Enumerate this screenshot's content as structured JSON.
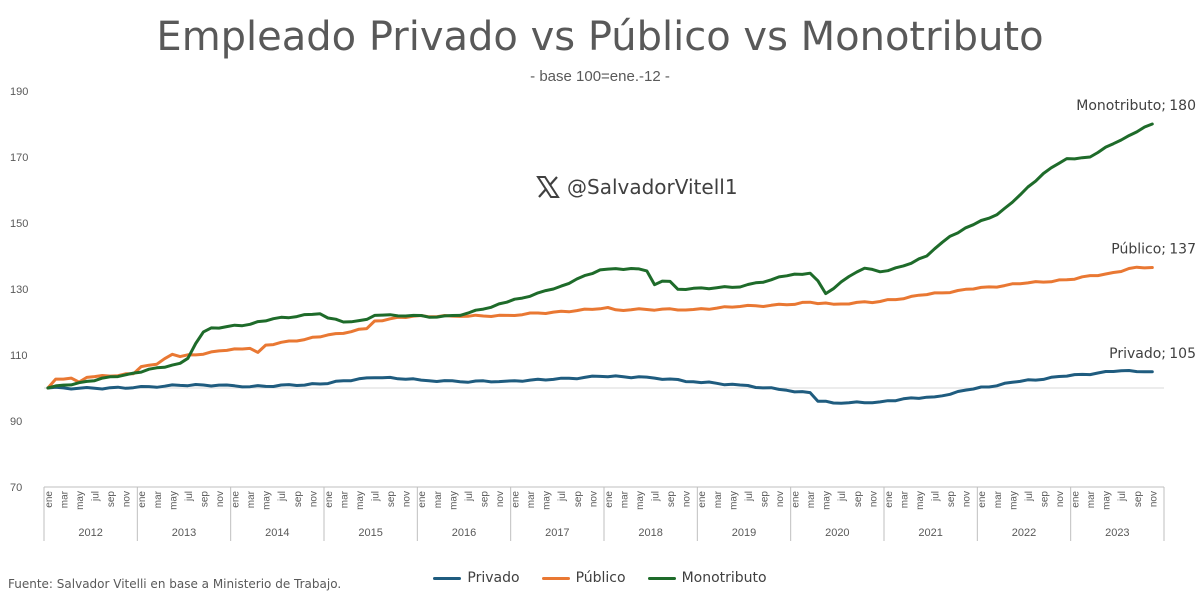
{
  "title": "Empleado Privado vs Público vs Monotributo",
  "subtitle": "- base 100=ene.-12 -",
  "watermark": {
    "handle": "@SalvadorVitell1",
    "icon": "x-logo-icon"
  },
  "source": "Fuente: Salvador Vitelli en base a Ministerio de Trabajo.",
  "chart_data": {
    "type": "line",
    "x_start": "2012-01",
    "x_end": "2023-11",
    "years": [
      "2012",
      "2013",
      "2014",
      "2015",
      "2016",
      "2017",
      "2018",
      "2019",
      "2020",
      "2021",
      "2022",
      "2023"
    ],
    "month_tick_labels": [
      "ene",
      "mar",
      "may",
      "jul",
      "sep",
      "nov"
    ],
    "y_ticks": [
      70,
      90,
      110,
      130,
      150,
      170,
      190
    ],
    "ylim": [
      70,
      190
    ],
    "reference_line": 100,
    "legend_position": "bottom",
    "series": [
      {
        "name": "Privado",
        "color": "#1F5C7F",
        "end_label": "Privado;",
        "end_value": "105",
        "anchors": [
          [
            "2012-01",
            100
          ],
          [
            "2012-07",
            99.9
          ],
          [
            "2012-12",
            100.1
          ],
          [
            "2013-06",
            100.8
          ],
          [
            "2013-12",
            100.9
          ],
          [
            "2014-03",
            100.4
          ],
          [
            "2014-12",
            101.2
          ],
          [
            "2015-03",
            102.2
          ],
          [
            "2015-07",
            103.1
          ],
          [
            "2015-12",
            102.8
          ],
          [
            "2016-01",
            102.4
          ],
          [
            "2016-06",
            101.9
          ],
          [
            "2016-12",
            102.1
          ],
          [
            "2017-06",
            102.6
          ],
          [
            "2017-12",
            103.5
          ],
          [
            "2018-06",
            103.3
          ],
          [
            "2018-12",
            101.9
          ],
          [
            "2019-06",
            100.9
          ],
          [
            "2019-12",
            99.3
          ],
          [
            "2020-03",
            98.6
          ],
          [
            "2020-04",
            96.0
          ],
          [
            "2020-07",
            95.4
          ],
          [
            "2020-12",
            95.8
          ],
          [
            "2021-04",
            97.0
          ],
          [
            "2021-07",
            97.3
          ],
          [
            "2021-12",
            99.7
          ],
          [
            "2022-06",
            102.0
          ],
          [
            "2022-12",
            103.6
          ],
          [
            "2023-06",
            105.0
          ],
          [
            "2023-08",
            105.3
          ],
          [
            "2023-11",
            104.9
          ]
        ]
      },
      {
        "name": "Público",
        "color": "#E97833",
        "end_label": "Público;",
        "end_value": "137",
        "anchors": [
          [
            "2012-01",
            100
          ],
          [
            "2012-02",
            102.7
          ],
          [
            "2012-04",
            103.0
          ],
          [
            "2012-05",
            101.8
          ],
          [
            "2012-06",
            103.2
          ],
          [
            "2012-12",
            104.3
          ],
          [
            "2013-01",
            106.5
          ],
          [
            "2013-03",
            107.2
          ],
          [
            "2013-05",
            110.2
          ],
          [
            "2013-06",
            109.5
          ],
          [
            "2013-12",
            111.4
          ],
          [
            "2014-03",
            112.0
          ],
          [
            "2014-04",
            110.8
          ],
          [
            "2014-05",
            113.0
          ],
          [
            "2014-12",
            115.5
          ],
          [
            "2015-06",
            118.0
          ],
          [
            "2015-07",
            120.3
          ],
          [
            "2015-12",
            121.8
          ],
          [
            "2016-06",
            121.7
          ],
          [
            "2016-12",
            122.0
          ],
          [
            "2017-06",
            123.0
          ],
          [
            "2017-12",
            124.0
          ],
          [
            "2018-01",
            124.4
          ],
          [
            "2018-02",
            123.7
          ],
          [
            "2018-06",
            123.8
          ],
          [
            "2018-12",
            123.8
          ],
          [
            "2019-06",
            124.7
          ],
          [
            "2019-12",
            125.2
          ],
          [
            "2020-03",
            126.0
          ],
          [
            "2020-06",
            125.4
          ],
          [
            "2020-12",
            126.2
          ],
          [
            "2021-06",
            128.3
          ],
          [
            "2021-12",
            130.0
          ],
          [
            "2022-06",
            131.6
          ],
          [
            "2022-12",
            132.8
          ],
          [
            "2023-06",
            135.0
          ],
          [
            "2023-09",
            136.6
          ],
          [
            "2023-11",
            136.5
          ]
        ]
      },
      {
        "name": "Monotributo",
        "color": "#1E6B2A",
        "end_label": "Monotributo;",
        "end_value": "180",
        "anchors": [
          [
            "2012-01",
            100
          ],
          [
            "2012-06",
            102.0
          ],
          [
            "2012-12",
            104.5
          ],
          [
            "2013-06",
            107.5
          ],
          [
            "2013-07",
            109.0
          ],
          [
            "2013-08",
            113.5
          ],
          [
            "2013-09",
            117.0
          ],
          [
            "2013-10",
            118.2
          ],
          [
            "2013-12",
            118.6
          ],
          [
            "2014-03",
            119.3
          ],
          [
            "2014-06",
            121.0
          ],
          [
            "2014-12",
            122.5
          ],
          [
            "2015-01",
            121.2
          ],
          [
            "2015-03",
            120.0
          ],
          [
            "2015-06",
            120.8
          ],
          [
            "2015-07",
            122.0
          ],
          [
            "2015-12",
            122.0
          ],
          [
            "2016-03",
            121.5
          ],
          [
            "2016-06",
            122.0
          ],
          [
            "2016-12",
            126.0
          ],
          [
            "2017-06",
            130.0
          ],
          [
            "2017-12",
            135.8
          ],
          [
            "2018-04",
            136.2
          ],
          [
            "2018-06",
            135.5
          ],
          [
            "2018-07",
            131.3
          ],
          [
            "2018-08",
            132.4
          ],
          [
            "2018-09",
            132.3
          ],
          [
            "2018-10",
            129.9
          ],
          [
            "2018-12",
            130.2
          ],
          [
            "2019-06",
            130.6
          ],
          [
            "2019-12",
            134.0
          ],
          [
            "2020-03",
            134.8
          ],
          [
            "2020-04",
            132.5
          ],
          [
            "2020-05",
            128.6
          ],
          [
            "2020-08",
            133.8
          ],
          [
            "2020-10",
            136.3
          ],
          [
            "2020-12",
            135.2
          ],
          [
            "2021-03",
            137.0
          ],
          [
            "2021-06",
            140.0
          ],
          [
            "2021-09",
            146.0
          ],
          [
            "2021-12",
            149.5
          ],
          [
            "2022-03",
            152.5
          ],
          [
            "2022-06",
            158.5
          ],
          [
            "2022-09",
            165.0
          ],
          [
            "2022-12",
            169.5
          ],
          [
            "2023-03",
            170.0
          ],
          [
            "2023-05",
            173.0
          ],
          [
            "2023-08",
            176.5
          ],
          [
            "2023-11",
            180.0
          ]
        ]
      }
    ]
  }
}
